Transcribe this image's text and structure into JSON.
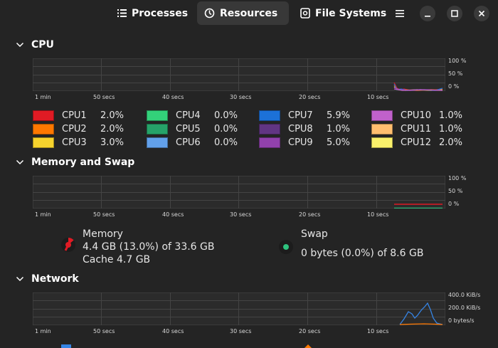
{
  "header": {
    "tabs": [
      {
        "label": "Processes"
      },
      {
        "label": "Resources"
      },
      {
        "label": "File Systems"
      }
    ]
  },
  "sections": {
    "cpu": "CPU",
    "memory": "Memory and Swap",
    "network": "Network"
  },
  "axis": {
    "percent_ticks": [
      "100 %",
      "50 %",
      "0 %"
    ],
    "network_ticks": [
      "400.0 KiB/s",
      "200.0 KiB/s",
      "0 bytes/s"
    ],
    "time_ticks": [
      "1 min",
      "50 secs",
      "40 secs",
      "30 secs",
      "20 secs",
      "10 secs"
    ]
  },
  "cpus": [
    {
      "name": "CPU1",
      "value": "2.0%",
      "color": "#e01b24"
    },
    {
      "name": "CPU2",
      "value": "2.0%",
      "color": "#ff7800"
    },
    {
      "name": "CPU3",
      "value": "3.0%",
      "color": "#f6d32d"
    },
    {
      "name": "CPU4",
      "value": "0.0%",
      "color": "#33d17a"
    },
    {
      "name": "CPU5",
      "value": "0.0%",
      "color": "#26a269"
    },
    {
      "name": "CPU6",
      "value": "0.0%",
      "color": "#62a0ea"
    },
    {
      "name": "CPU7",
      "value": "5.9%",
      "color": "#1c71d8"
    },
    {
      "name": "CPU8",
      "value": "1.0%",
      "color": "#613583"
    },
    {
      "name": "CPU9",
      "value": "5.0%",
      "color": "#9141ac"
    },
    {
      "name": "CPU10",
      "value": "1.0%",
      "color": "#c061cb"
    },
    {
      "name": "CPU11",
      "value": "1.0%",
      "color": "#ffbe6f"
    },
    {
      "name": "CPU12",
      "value": "2.0%",
      "color": "#f9f06b"
    }
  ],
  "memory": {
    "title": "Memory",
    "usage": "4.4 GB (13.0%) of 33.6 GB",
    "cache": "Cache 4.7 GB",
    "color": "#e01b24"
  },
  "swap": {
    "title": "Swap",
    "usage": "0 bytes (0.0%) of 8.6 GB",
    "color": "#2ec27e"
  },
  "network": {
    "receiving_color": "#3584e4",
    "sending_color": "#ff7800"
  }
}
